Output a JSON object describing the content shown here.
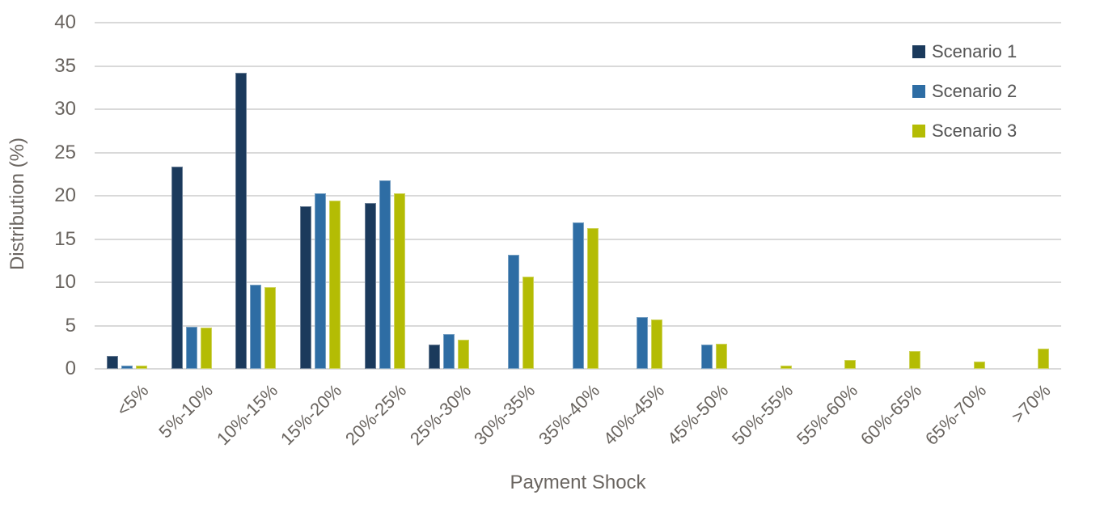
{
  "figure": {
    "background": "#FFFFFF"
  },
  "chart_data": {
    "type": "bar",
    "title": "",
    "xlabel": "Payment Shock",
    "ylabel": "Distribution (%)",
    "ylim": [
      0,
      40
    ],
    "ytick_step": 5,
    "yticks": [
      0,
      5,
      10,
      15,
      20,
      25,
      30,
      35,
      40
    ],
    "grid": true,
    "gridline_color": "#D9D9D9",
    "axis_text_color": "#6A6560",
    "legend_text_color": "#545454",
    "legend_position": "top-right",
    "categories": [
      "<5%",
      "5%-10%",
      "10%-15%",
      "15%-20%",
      "20%-25%",
      "25%-30%",
      "30%-35%",
      "35%-40%",
      "40%-45%",
      "45%-50%",
      "50%-55%",
      "55%-60%",
      "60%-65%",
      "65%-70%",
      ">70%"
    ],
    "series": [
      {
        "name": "Scenario 1",
        "color": "#1B3A5C",
        "values": [
          1.5,
          23.4,
          34.2,
          18.8,
          19.2,
          2.8,
          0,
          0,
          0,
          0,
          0,
          0,
          0,
          0,
          0
        ]
      },
      {
        "name": "Scenario 2",
        "color": "#2E6DA4",
        "values": [
          0.4,
          4.9,
          9.7,
          20.3,
          21.8,
          4.0,
          13.2,
          16.9,
          6.0,
          2.8,
          0,
          0,
          0,
          0,
          0
        ]
      },
      {
        "name": "Scenario 3",
        "color": "#B4BC04",
        "values": [
          0.4,
          4.8,
          9.4,
          19.4,
          20.3,
          3.4,
          10.7,
          16.3,
          5.7,
          2.9,
          0.4,
          1.0,
          2.1,
          0.8,
          2.3
        ]
      }
    ]
  }
}
